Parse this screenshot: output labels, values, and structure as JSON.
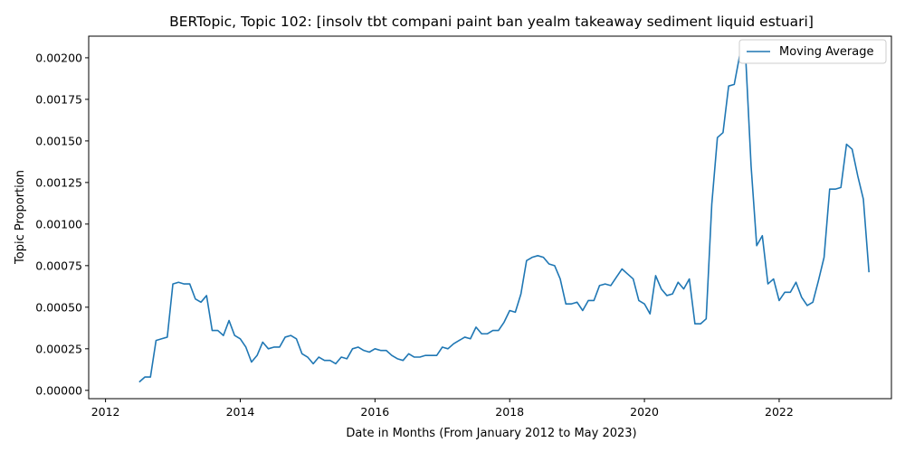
{
  "chart_data": {
    "type": "line",
    "title": "BERTopic, Topic 102: [insolv tbt compani paint ban yealm takeaway sediment liquid estuari]",
    "xlabel": "Date in Months (From January 2012 to May 2023)",
    "ylabel": "Topic Proportion",
    "x_ticks": [
      "2012",
      "2014",
      "2016",
      "2018",
      "2020",
      "2022"
    ],
    "y_ticks": [
      "0.00000",
      "0.00025",
      "0.00050",
      "0.00075",
      "0.00100",
      "0.00125",
      "0.00150",
      "0.00175",
      "0.00200"
    ],
    "xlim": [
      "2011-10",
      "2023-09"
    ],
    "ylim": [
      -5e-05,
      0.00213
    ],
    "grid": false,
    "legend_position": "top-right",
    "series": [
      {
        "name": "Moving Average",
        "color": "#1f77b4",
        "points": [
          [
            "2012-07",
            5e-05
          ],
          [
            "2012-08",
            8e-05
          ],
          [
            "2012-09",
            8e-05
          ],
          [
            "2012-10",
            0.0003
          ],
          [
            "2012-11",
            0.00031
          ],
          [
            "2012-12",
            0.00032
          ],
          [
            "2013-01",
            0.00064
          ],
          [
            "2013-02",
            0.00065
          ],
          [
            "2013-03",
            0.00064
          ],
          [
            "2013-04",
            0.00064
          ],
          [
            "2013-05",
            0.00055
          ],
          [
            "2013-06",
            0.00053
          ],
          [
            "2013-07",
            0.00057
          ],
          [
            "2013-08",
            0.00036
          ],
          [
            "2013-09",
            0.00036
          ],
          [
            "2013-10",
            0.00033
          ],
          [
            "2013-11",
            0.00042
          ],
          [
            "2013-12",
            0.00033
          ],
          [
            "2014-01",
            0.00031
          ],
          [
            "2014-02",
            0.00026
          ],
          [
            "2014-03",
            0.00017
          ],
          [
            "2014-04",
            0.00021
          ],
          [
            "2014-05",
            0.00029
          ],
          [
            "2014-06",
            0.00025
          ],
          [
            "2014-07",
            0.00026
          ],
          [
            "2014-08",
            0.00026
          ],
          [
            "2014-09",
            0.00032
          ],
          [
            "2014-10",
            0.00033
          ],
          [
            "2014-11",
            0.00031
          ],
          [
            "2014-12",
            0.00022
          ],
          [
            "2015-01",
            0.0002
          ],
          [
            "2015-02",
            0.00016
          ],
          [
            "2015-03",
            0.0002
          ],
          [
            "2015-04",
            0.00018
          ],
          [
            "2015-05",
            0.00018
          ],
          [
            "2015-06",
            0.00016
          ],
          [
            "2015-07",
            0.0002
          ],
          [
            "2015-08",
            0.00019
          ],
          [
            "2015-09",
            0.00025
          ],
          [
            "2015-10",
            0.00026
          ],
          [
            "2015-11",
            0.00024
          ],
          [
            "2015-12",
            0.00023
          ],
          [
            "2016-01",
            0.00025
          ],
          [
            "2016-02",
            0.00024
          ],
          [
            "2016-03",
            0.00024
          ],
          [
            "2016-04",
            0.00021
          ],
          [
            "2016-05",
            0.00019
          ],
          [
            "2016-06",
            0.00018
          ],
          [
            "2016-07",
            0.00022
          ],
          [
            "2016-08",
            0.0002
          ],
          [
            "2016-09",
            0.0002
          ],
          [
            "2016-10",
            0.00021
          ],
          [
            "2016-11",
            0.00021
          ],
          [
            "2016-12",
            0.00021
          ],
          [
            "2017-01",
            0.00026
          ],
          [
            "2017-02",
            0.00025
          ],
          [
            "2017-03",
            0.00028
          ],
          [
            "2017-04",
            0.0003
          ],
          [
            "2017-05",
            0.00032
          ],
          [
            "2017-06",
            0.00031
          ],
          [
            "2017-07",
            0.00038
          ],
          [
            "2017-08",
            0.00034
          ],
          [
            "2017-09",
            0.00034
          ],
          [
            "2017-10",
            0.00036
          ],
          [
            "2017-11",
            0.00036
          ],
          [
            "2017-12",
            0.00041
          ],
          [
            "2018-01",
            0.00048
          ],
          [
            "2018-02",
            0.00047
          ],
          [
            "2018-03",
            0.00058
          ],
          [
            "2018-04",
            0.00078
          ],
          [
            "2018-05",
            0.0008
          ],
          [
            "2018-06",
            0.00081
          ],
          [
            "2018-07",
            0.0008
          ],
          [
            "2018-08",
            0.00076
          ],
          [
            "2018-09",
            0.00075
          ],
          [
            "2018-10",
            0.00067
          ],
          [
            "2018-11",
            0.00052
          ],
          [
            "2018-12",
            0.00052
          ],
          [
            "2019-01",
            0.00053
          ],
          [
            "2019-02",
            0.00048
          ],
          [
            "2019-03",
            0.00054
          ],
          [
            "2019-04",
            0.00054
          ],
          [
            "2019-05",
            0.00063
          ],
          [
            "2019-06",
            0.00064
          ],
          [
            "2019-07",
            0.00063
          ],
          [
            "2019-08",
            0.00068
          ],
          [
            "2019-09",
            0.00073
          ],
          [
            "2019-10",
            0.0007
          ],
          [
            "2019-11",
            0.00067
          ],
          [
            "2019-12",
            0.00054
          ],
          [
            "2020-01",
            0.00052
          ],
          [
            "2020-02",
            0.00046
          ],
          [
            "2020-03",
            0.00069
          ],
          [
            "2020-04",
            0.00061
          ],
          [
            "2020-05",
            0.00057
          ],
          [
            "2020-06",
            0.00058
          ],
          [
            "2020-07",
            0.00065
          ],
          [
            "2020-08",
            0.00061
          ],
          [
            "2020-09",
            0.00067
          ],
          [
            "2020-10",
            0.0004
          ],
          [
            "2020-11",
            0.0004
          ],
          [
            "2020-12",
            0.00043
          ],
          [
            "2021-01",
            0.00112
          ],
          [
            "2021-02",
            0.00152
          ],
          [
            "2021-03",
            0.00155
          ],
          [
            "2021-04",
            0.00183
          ],
          [
            "2021-05",
            0.00184
          ],
          [
            "2021-06",
            0.00202
          ],
          [
            "2021-07",
            0.00203
          ],
          [
            "2021-08",
            0.00135
          ],
          [
            "2021-09",
            0.00087
          ],
          [
            "2021-10",
            0.00093
          ],
          [
            "2021-11",
            0.00064
          ],
          [
            "2021-12",
            0.00067
          ],
          [
            "2022-01",
            0.00054
          ],
          [
            "2022-02",
            0.00059
          ],
          [
            "2022-03",
            0.00059
          ],
          [
            "2022-04",
            0.00065
          ],
          [
            "2022-05",
            0.00056
          ],
          [
            "2022-06",
            0.00051
          ],
          [
            "2022-07",
            0.00053
          ],
          [
            "2022-08",
            0.00066
          ],
          [
            "2022-09",
            0.0008
          ],
          [
            "2022-10",
            0.00121
          ],
          [
            "2022-11",
            0.00121
          ],
          [
            "2022-12",
            0.00122
          ],
          [
            "2023-01",
            0.00148
          ],
          [
            "2023-02",
            0.00145
          ],
          [
            "2023-03",
            0.00129
          ],
          [
            "2023-04",
            0.00115
          ],
          [
            "2023-05",
            0.00071
          ]
        ]
      }
    ]
  }
}
